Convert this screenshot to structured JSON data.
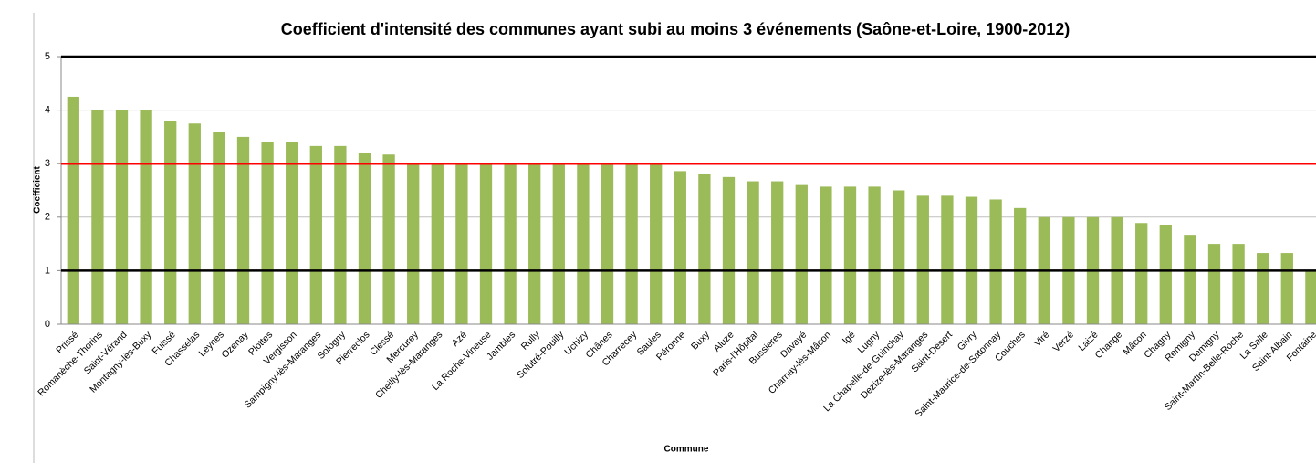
{
  "chart_data": {
    "type": "bar",
    "title": "Coefficient d'intensité des communes ayant subi au moins 3 événements (Saône-et-Loire, 1900-2012)",
    "x_label": "Commune",
    "y_label": "Coefficient",
    "categories": [
      "Prissé",
      "Romanèche-Thorins",
      "Saint-Vérand",
      "Montagny-lès-Buxy",
      "Fuissé",
      "Chasselas",
      "Leynes",
      "Ozenay",
      "Plottes",
      "Vergisson",
      "Sampigny-lès-Maranges",
      "Sologny",
      "Pierreclos",
      "Clessé",
      "Mercurey",
      "Cheilly-lès-Maranges",
      "Azé",
      "La Roche-Vineuse",
      "Jambles",
      "Rully",
      "Solutré-Pouilly",
      "Uchizy",
      "Chânes",
      "Charrecey",
      "Saules",
      "Péronne",
      "Buxy",
      "Aluze",
      "Paris-l'Hôpital",
      "Bussières",
      "Davayé",
      "Charnay-lès-Mâcon",
      "Igé",
      "Lugny",
      "La Chapelle-de-Guinchay",
      "Dezize-lès-Maranges",
      "Saint-Désert",
      "Givry",
      "Saint-Maurice-de-Satonnay",
      "Couches",
      "Viré",
      "Verzé",
      "Laizé",
      "Change",
      "Mâcon",
      "Chagny",
      "Remigny",
      "Demigny",
      "Saint-Martin-Belle-Roche",
      "La Salle",
      "Saint-Albain",
      "Fontaine"
    ],
    "values": [
      4.25,
      4,
      4,
      4,
      3.8,
      3.75,
      3.6,
      3.5,
      3.4,
      3.4,
      3.33,
      3.33,
      3.2,
      3.17,
      3,
      3,
      3,
      3,
      3,
      3,
      3,
      3,
      3,
      3,
      3,
      2.86,
      2.8,
      2.75,
      2.67,
      2.67,
      2.6,
      2.57,
      2.57,
      2.57,
      2.5,
      2.4,
      2.4,
      2.38,
      2.33,
      2.17,
      2,
      2,
      2,
      2,
      1.89,
      1.86,
      1.67,
      1.5,
      1.5,
      1.33,
      1.33,
      1
    ],
    "color": "#9bbb59",
    "ylim": [
      0,
      5
    ],
    "yticks": [
      0,
      1,
      2,
      3,
      4,
      5
    ],
    "grid": true,
    "reference_lines": [
      {
        "value": 1,
        "color": "#000000"
      },
      {
        "value": 3,
        "color": "#ff0000"
      },
      {
        "value": 5,
        "color": "#000000"
      }
    ]
  }
}
